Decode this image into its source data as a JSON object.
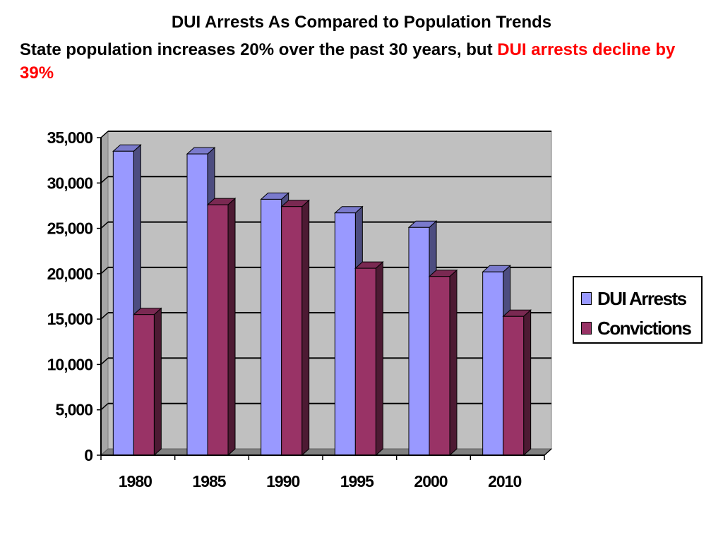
{
  "title": "DUI Arrests As Compared to Population Trends",
  "subtitle": {
    "black_part": "State population increases 20% over the past 30 years, but ",
    "red_part": "DUI arrests decline by 39%"
  },
  "colors": {
    "dui_arrests": "#9999ff",
    "convictions": "#993366",
    "plot_background": "#c0c0c0",
    "highlight_text": "#ff0000"
  },
  "legend": {
    "placement": "right",
    "items": [
      {
        "label": "DUI Arrests",
        "color": "#9999ff"
      },
      {
        "label": "Convictions",
        "color": "#993366"
      }
    ]
  },
  "chart_data": {
    "type": "bar",
    "categories": [
      "1980",
      "1985",
      "1990",
      "1995",
      "2000",
      "2010"
    ],
    "series": [
      {
        "name": "DUI Arrests",
        "values": [
          33500,
          33200,
          28200,
          26700,
          25100,
          20200
        ]
      },
      {
        "name": "Convictions",
        "values": [
          15500,
          27600,
          27400,
          20600,
          19700,
          15300
        ]
      }
    ],
    "ylim": [
      0,
      35000
    ],
    "yticks": [
      0,
      5000,
      10000,
      15000,
      20000,
      25000,
      30000,
      35000
    ],
    "ytick_labels": [
      "0",
      "5,000",
      "10,000",
      "15,000",
      "20,000",
      "25,000",
      "30,000",
      "35,000"
    ],
    "grid": true,
    "style": "3d-clustered-column"
  }
}
